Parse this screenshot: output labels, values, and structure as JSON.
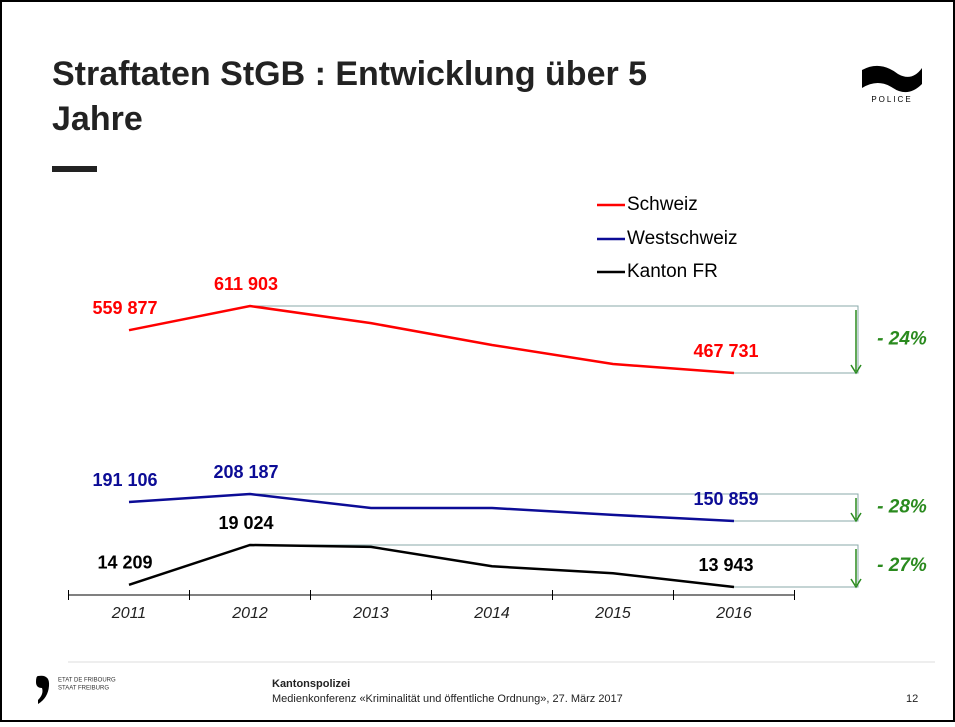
{
  "header": {
    "title_lines": [
      "Straftaten StGB : Entwicklung über 5",
      "Jahre"
    ],
    "logo_text": "POLICE"
  },
  "chart_data": {
    "type": "line",
    "categories": [
      "2011",
      "2012",
      "2013",
      "2014",
      "2015",
      "2016"
    ],
    "series": [
      {
        "name": "Schweiz",
        "color": "#ff0000",
        "values": [
          559877,
          611903,
          575000,
          528000,
          487000,
          467731
        ],
        "value_labels": [
          "559 877",
          "611 903",
          null,
          null,
          null,
          "467 731"
        ],
        "change_label": "- 24%"
      },
      {
        "name": "Westschweiz",
        "color": "#0c0c96",
        "values": [
          191106,
          208187,
          178500,
          178500,
          163800,
          150859
        ],
        "value_labels": [
          "191 106",
          "208 187",
          null,
          null,
          null,
          "150 859"
        ],
        "change_label": "- 28%"
      },
      {
        "name": "Kanton FR",
        "color": "#000000",
        "values": [
          14209,
          19024,
          18800,
          16450,
          15600,
          13943
        ],
        "value_labels": [
          "14 209",
          "19 024",
          null,
          null,
          null,
          "13 943"
        ],
        "change_label": "- 27%"
      }
    ]
  },
  "footer": {
    "org_lines": [
      "ETAT DE FRIBOURG",
      "STAAT FREIBURG"
    ],
    "unit": "Kantonspolizei",
    "event": "Medienkonferenz «Kriminalität und öffentliche Ordnung», 27. März 2017",
    "page": "12"
  }
}
